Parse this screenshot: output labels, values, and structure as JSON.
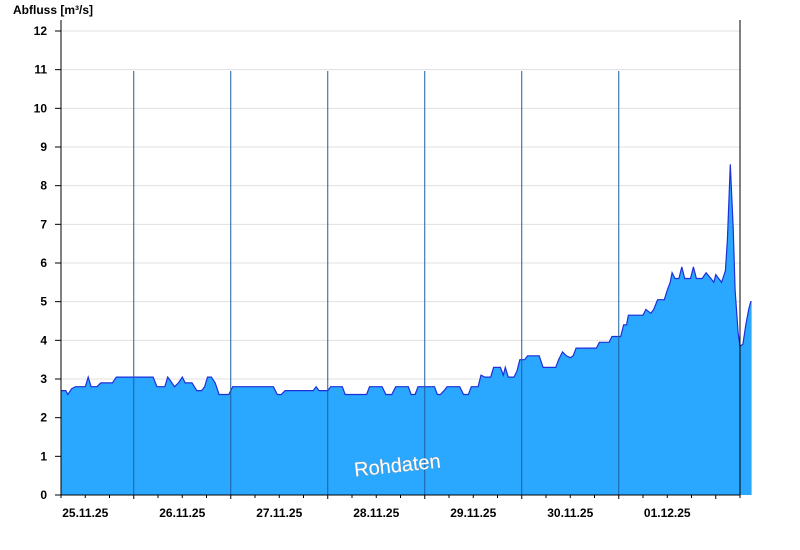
{
  "chart_data": {
    "type": "area",
    "ylabel": "Abfluss [m³/s]",
    "watermark": "Rohdaten",
    "ylim": [
      0,
      12
    ],
    "yticks": [
      "0",
      "1",
      "2",
      "3",
      "4",
      "5",
      "6",
      "7",
      "8",
      "9",
      "10",
      "11",
      "12"
    ],
    "day_labels": [
      "25.11.25",
      "26.11.25",
      "27.11.25",
      "28.11.25",
      "29.11.25",
      "30.11.25",
      "01.12.25"
    ],
    "x_start_day_offset": -0.25,
    "x_end_day_offset": 6.75,
    "grid": true,
    "colors": {
      "fill": "#2aa7ff",
      "line": "#1f2fd8",
      "grid": "#e0e0e0",
      "axis": "#000000",
      "day_divider": "#1c5fa0"
    },
    "series": [
      {
        "points": [
          [
            -0.25,
            2.7
          ],
          [
            -0.2,
            2.7
          ],
          [
            -0.18,
            2.6
          ],
          [
            -0.14,
            2.75
          ],
          [
            -0.1,
            2.8
          ],
          [
            0.0,
            2.8
          ],
          [
            0.03,
            3.05
          ],
          [
            0.06,
            2.8
          ],
          [
            0.12,
            2.8
          ],
          [
            0.16,
            2.9
          ],
          [
            0.28,
            2.9
          ],
          [
            0.32,
            3.05
          ],
          [
            0.7,
            3.05
          ],
          [
            0.74,
            2.8
          ],
          [
            0.82,
            2.8
          ],
          [
            0.85,
            3.05
          ],
          [
            0.88,
            2.95
          ],
          [
            0.92,
            2.8
          ],
          [
            0.96,
            2.9
          ],
          [
            1.0,
            3.05
          ],
          [
            1.03,
            2.9
          ],
          [
            1.1,
            2.9
          ],
          [
            1.15,
            2.7
          ],
          [
            1.2,
            2.7
          ],
          [
            1.23,
            2.8
          ],
          [
            1.26,
            3.05
          ],
          [
            1.3,
            3.05
          ],
          [
            1.34,
            2.9
          ],
          [
            1.38,
            2.6
          ],
          [
            1.48,
            2.6
          ],
          [
            1.52,
            2.8
          ],
          [
            1.8,
            2.8
          ],
          [
            1.94,
            2.8
          ],
          [
            1.98,
            2.6
          ],
          [
            2.02,
            2.6
          ],
          [
            2.06,
            2.7
          ],
          [
            2.35,
            2.7
          ],
          [
            2.38,
            2.8
          ],
          [
            2.41,
            2.7
          ],
          [
            2.5,
            2.7
          ],
          [
            2.53,
            2.8
          ],
          [
            2.65,
            2.8
          ],
          [
            2.68,
            2.6
          ],
          [
            2.9,
            2.6
          ],
          [
            2.93,
            2.8
          ],
          [
            3.06,
            2.8
          ],
          [
            3.1,
            2.6
          ],
          [
            3.16,
            2.6
          ],
          [
            3.2,
            2.8
          ],
          [
            3.33,
            2.8
          ],
          [
            3.36,
            2.6
          ],
          [
            3.4,
            2.6
          ],
          [
            3.43,
            2.8
          ],
          [
            3.6,
            2.8
          ],
          [
            3.63,
            2.6
          ],
          [
            3.66,
            2.6
          ],
          [
            3.7,
            2.7
          ],
          [
            3.73,
            2.8
          ],
          [
            3.86,
            2.8
          ],
          [
            3.9,
            2.6
          ],
          [
            3.95,
            2.6
          ],
          [
            3.98,
            2.8
          ],
          [
            4.05,
            2.8
          ],
          [
            4.08,
            3.1
          ],
          [
            4.12,
            3.05
          ],
          [
            4.18,
            3.05
          ],
          [
            4.21,
            3.3
          ],
          [
            4.28,
            3.3
          ],
          [
            4.31,
            3.1
          ],
          [
            4.33,
            3.3
          ],
          [
            4.36,
            3.05
          ],
          [
            4.42,
            3.05
          ],
          [
            4.45,
            3.2
          ],
          [
            4.48,
            3.5
          ],
          [
            4.53,
            3.5
          ],
          [
            4.56,
            3.6
          ],
          [
            4.68,
            3.6
          ],
          [
            4.72,
            3.3
          ],
          [
            4.85,
            3.3
          ],
          [
            4.88,
            3.5
          ],
          [
            4.92,
            3.7
          ],
          [
            4.96,
            3.6
          ],
          [
            5.0,
            3.55
          ],
          [
            5.03,
            3.6
          ],
          [
            5.06,
            3.8
          ],
          [
            5.27,
            3.8
          ],
          [
            5.3,
            3.95
          ],
          [
            5.4,
            3.95
          ],
          [
            5.43,
            4.1
          ],
          [
            5.52,
            4.1
          ],
          [
            5.55,
            4.4
          ],
          [
            5.58,
            4.4
          ],
          [
            5.6,
            4.65
          ],
          [
            5.75,
            4.65
          ],
          [
            5.78,
            4.8
          ],
          [
            5.83,
            4.7
          ],
          [
            5.86,
            4.8
          ],
          [
            5.9,
            5.05
          ],
          [
            5.97,
            5.05
          ],
          [
            6.0,
            5.3
          ],
          [
            6.03,
            5.5
          ],
          [
            6.05,
            5.75
          ],
          [
            6.08,
            5.6
          ],
          [
            6.12,
            5.6
          ],
          [
            6.15,
            5.9
          ],
          [
            6.18,
            5.6
          ],
          [
            6.24,
            5.6
          ],
          [
            6.27,
            5.9
          ],
          [
            6.3,
            5.6
          ],
          [
            6.36,
            5.6
          ],
          [
            6.4,
            5.75
          ],
          [
            6.45,
            5.6
          ],
          [
            6.48,
            5.5
          ],
          [
            6.5,
            5.7
          ],
          [
            6.53,
            5.6
          ],
          [
            6.56,
            5.5
          ],
          [
            6.58,
            5.65
          ],
          [
            6.6,
            5.8
          ],
          [
            6.62,
            6.6
          ],
          [
            6.65,
            8.55
          ],
          [
            6.68,
            6.9
          ],
          [
            6.7,
            5.3
          ],
          [
            6.73,
            4.2
          ],
          [
            6.75,
            3.85
          ],
          [
            6.78,
            3.9
          ],
          [
            6.81,
            4.4
          ],
          [
            6.84,
            4.8
          ],
          [
            6.86,
            5.0
          ],
          [
            6.87,
            5.0
          ]
        ]
      }
    ]
  }
}
